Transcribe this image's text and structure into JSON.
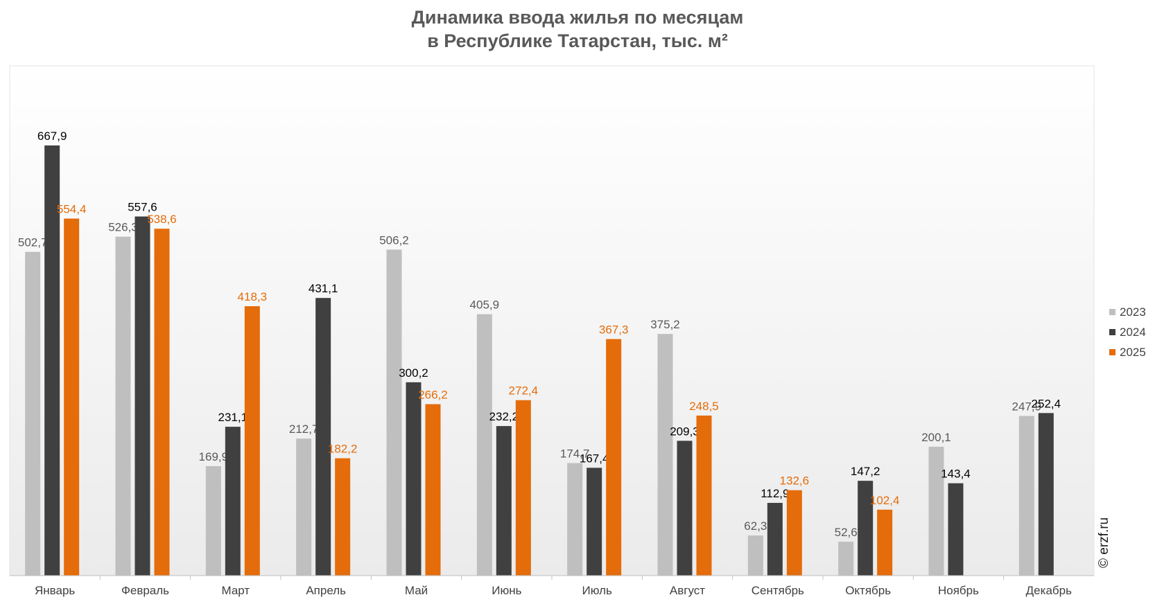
{
  "title_line1": "Динамика ввода жилья по месяцам",
  "title_line2": "в Республике Татарстан, тыс. м²",
  "copyright": "© erzf.ru",
  "chart_data": {
    "type": "bar",
    "categories": [
      "Январь",
      "Февраль",
      "Март",
      "Апрель",
      "Май",
      "Июнь",
      "Июль",
      "Август",
      "Сентябрь",
      "Октябрь",
      "Ноябрь",
      "Декабрь"
    ],
    "series": [
      {
        "name": "2023",
        "color": "#bfbfbf",
        "label_color": "#595959",
        "values": [
          502.7,
          526.3,
          169.9,
          212.7,
          506.2,
          405.9,
          174.7,
          375.2,
          62.3,
          52.6,
          200.1,
          247.9
        ],
        "labels": [
          "502,7",
          "526,3",
          "169,9",
          "212,7",
          "506,2",
          "405,9",
          "174,7",
          "375,2",
          "62,3",
          "52,6",
          "200,1",
          "247,9"
        ]
      },
      {
        "name": "2024",
        "color": "#404040",
        "label_color": "#000000",
        "values": [
          667.9,
          557.6,
          231.1,
          431.1,
          300.2,
          232.2,
          167.4,
          209.3,
          112.9,
          147.2,
          143.4,
          252.4
        ],
        "labels": [
          "667,9",
          "557,6",
          "231,1",
          "431,1",
          "300,2",
          "232,2",
          "167,4",
          "209,3",
          "112,9",
          "147,2",
          "143,4",
          "252,4"
        ]
      },
      {
        "name": "2025",
        "color": "#e46c0a",
        "label_color": "#e46c0a",
        "values": [
          554.4,
          538.6,
          418.3,
          182.2,
          266.2,
          272.4,
          367.3,
          248.5,
          132.6,
          102.4,
          null,
          null
        ],
        "labels": [
          "554,4",
          "538,6",
          "418,3",
          "182,2",
          "266,2",
          "272,4",
          "367,3",
          "248,5",
          "132,6",
          "102,4",
          "",
          ""
        ]
      }
    ],
    "ylim": [
      0,
      800
    ],
    "grid": false,
    "legend": "right"
  }
}
